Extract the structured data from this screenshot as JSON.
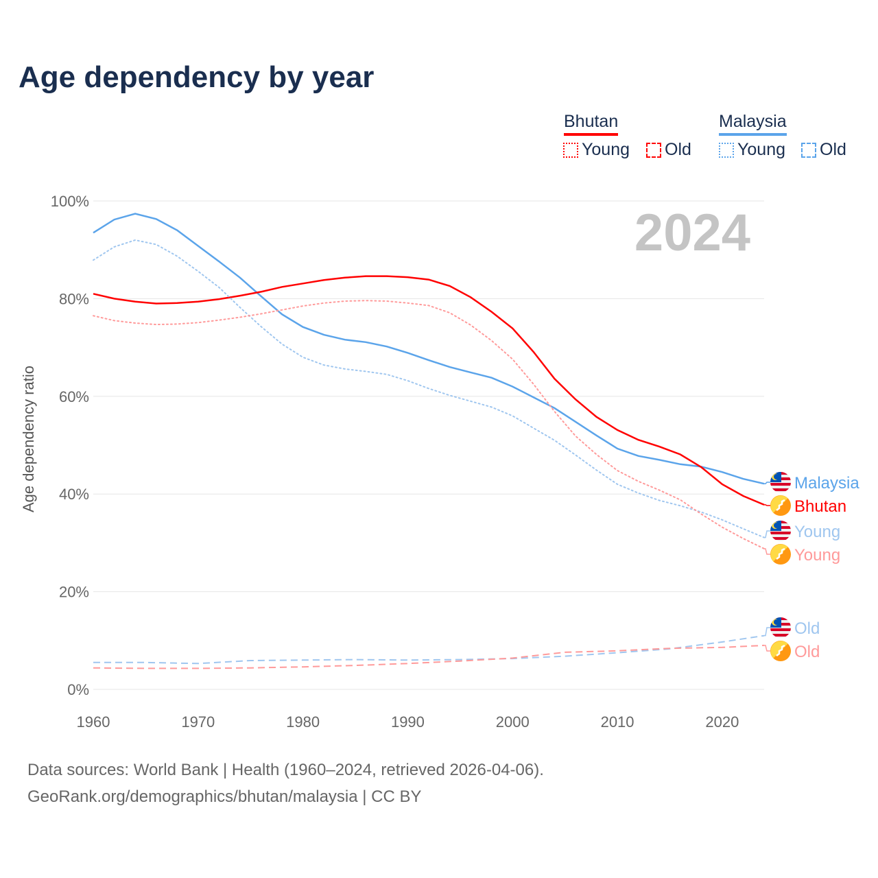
{
  "title": "Age dependency by year",
  "year_overlay": "2024",
  "legend": {
    "groups": [
      {
        "name": "Bhutan",
        "color": "#ff0000",
        "items": [
          {
            "label": "Young",
            "style": "dotted"
          },
          {
            "label": "Old",
            "style": "dashed"
          }
        ]
      },
      {
        "name": "Malaysia",
        "color": "#5ba4ea",
        "items": [
          {
            "label": "Young",
            "style": "dotted"
          },
          {
            "label": "Old",
            "style": "dashed"
          }
        ]
      }
    ]
  },
  "footer": {
    "line1": "Data sources: World Bank | Health (1960–2024, retrieved 2026-04-06).",
    "line2": "GeoRank.org/demographics/bhutan/malaysia | CC BY"
  },
  "chart_data": {
    "type": "line",
    "title": "Age dependency by year",
    "xlabel": "",
    "ylabel": "Age dependency ratio",
    "xlim": [
      1960,
      2024
    ],
    "ylim": [
      0,
      100
    ],
    "xticks": [
      "1960",
      "1970",
      "1980",
      "1990",
      "2000",
      "2010",
      "2020"
    ],
    "yticks": [
      "0%",
      "20%",
      "40%",
      "60%",
      "80%",
      "100%"
    ],
    "grid": true,
    "series": [
      {
        "name": "Malaysia",
        "label": "Malaysia",
        "country": "malaysia",
        "style": "solid",
        "color": "#5ba4ea",
        "x": [
          1960,
          1962,
          1964,
          1966,
          1968,
          1970,
          1972,
          1974,
          1976,
          1978,
          1980,
          1982,
          1984,
          1986,
          1988,
          1990,
          1992,
          1994,
          1996,
          1998,
          2000,
          2002,
          2004,
          2006,
          2008,
          2010,
          2012,
          2014,
          2016,
          2018,
          2020,
          2022,
          2024
        ],
        "y": [
          93.5,
          96.2,
          97.4,
          96.3,
          94.0,
          90.8,
          87.6,
          84.3,
          80.5,
          76.8,
          74.2,
          72.6,
          71.6,
          71.1,
          70.2,
          68.9,
          67.4,
          66.0,
          64.9,
          63.8,
          62.0,
          59.8,
          57.6,
          54.8,
          52.0,
          49.3,
          47.8,
          47.0,
          46.1,
          45.6,
          44.5,
          43.1,
          42.1
        ]
      },
      {
        "name": "Bhutan",
        "label": "Bhutan",
        "country": "bhutan",
        "style": "solid",
        "color": "#ff0000",
        "x": [
          1960,
          1962,
          1964,
          1966,
          1968,
          1970,
          1972,
          1974,
          1976,
          1978,
          1980,
          1982,
          1984,
          1986,
          1988,
          1990,
          1992,
          1994,
          1996,
          1998,
          2000,
          2002,
          2004,
          2006,
          2008,
          2010,
          2012,
          2014,
          2016,
          2018,
          2020,
          2022,
          2024
        ],
        "y": [
          81.0,
          80.0,
          79.4,
          79.0,
          79.1,
          79.4,
          79.9,
          80.6,
          81.4,
          82.4,
          83.1,
          83.8,
          84.3,
          84.6,
          84.6,
          84.4,
          83.9,
          82.6,
          80.3,
          77.3,
          73.9,
          69.1,
          63.6,
          59.4,
          55.8,
          53.1,
          51.1,
          49.7,
          48.1,
          45.5,
          42.0,
          39.6,
          37.8
        ]
      },
      {
        "name": "Malaysia Young",
        "label": "Young",
        "country": "malaysia",
        "style": "dotted",
        "color": "#9fc6ef",
        "x": [
          1960,
          1962,
          1964,
          1966,
          1968,
          1970,
          1972,
          1974,
          1976,
          1978,
          1980,
          1982,
          1984,
          1986,
          1988,
          1990,
          1992,
          1994,
          1996,
          1998,
          2000,
          2002,
          2004,
          2006,
          2008,
          2010,
          2012,
          2014,
          2016,
          2018,
          2020,
          2022,
          2024
        ],
        "y": [
          87.9,
          90.6,
          92.0,
          91.1,
          88.7,
          85.6,
          82.3,
          78.2,
          74.3,
          70.7,
          68.0,
          66.4,
          65.6,
          65.1,
          64.5,
          63.2,
          61.6,
          60.2,
          59.0,
          57.8,
          56.0,
          53.5,
          51.0,
          48.0,
          44.9,
          42.0,
          40.2,
          38.7,
          37.6,
          36.3,
          34.7,
          32.9,
          31.1
        ]
      },
      {
        "name": "Bhutan Young",
        "label": "Young",
        "country": "bhutan",
        "style": "dotted",
        "color": "#ff9a9a",
        "x": [
          1960,
          1962,
          1964,
          1966,
          1968,
          1970,
          1972,
          1974,
          1976,
          1978,
          1980,
          1982,
          1984,
          1986,
          1988,
          1990,
          1992,
          1994,
          1996,
          1998,
          2000,
          2002,
          2004,
          2006,
          2008,
          2010,
          2012,
          2014,
          2016,
          2018,
          2020,
          2022,
          2024
        ],
        "y": [
          76.5,
          75.5,
          75.0,
          74.7,
          74.8,
          75.1,
          75.6,
          76.2,
          76.9,
          77.7,
          78.5,
          79.1,
          79.5,
          79.6,
          79.5,
          79.1,
          78.6,
          77.1,
          74.6,
          71.4,
          67.6,
          62.5,
          56.9,
          51.9,
          48.1,
          44.8,
          42.6,
          40.8,
          38.8,
          35.9,
          33.2,
          30.9,
          28.8
        ]
      },
      {
        "name": "Malaysia Old",
        "label": "Old",
        "country": "malaysia",
        "style": "dashed",
        "color": "#9fc6ef",
        "x": [
          1960,
          1965,
          1970,
          1975,
          1980,
          1985,
          1990,
          1995,
          2000,
          2005,
          2010,
          2015,
          2020,
          2024
        ],
        "y": [
          5.5,
          5.5,
          5.3,
          5.9,
          6.0,
          6.1,
          6.0,
          6.1,
          6.3,
          6.8,
          7.5,
          8.3,
          9.7,
          11.0
        ]
      },
      {
        "name": "Bhutan Old",
        "label": "Old",
        "country": "bhutan",
        "style": "dashed",
        "color": "#ff9a9a",
        "x": [
          1960,
          1965,
          1970,
          1975,
          1980,
          1985,
          1990,
          1995,
          2000,
          2005,
          2010,
          2015,
          2020,
          2024
        ],
        "y": [
          4.4,
          4.3,
          4.3,
          4.4,
          4.6,
          4.9,
          5.3,
          5.8,
          6.4,
          7.6,
          7.9,
          8.4,
          8.6,
          9.0
        ]
      }
    ]
  }
}
